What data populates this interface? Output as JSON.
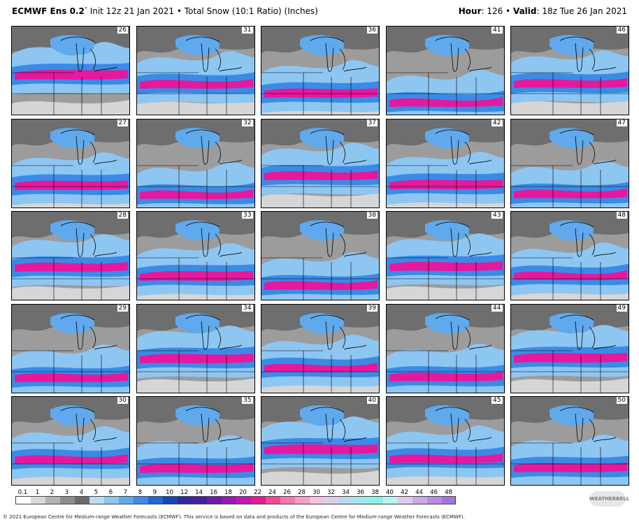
{
  "header": {
    "model": "ECMWF Ens 0.2",
    "model_sup": "°",
    "init": " Init 12z 21 Jan 2021",
    "bullet": " • ",
    "product": "Total Snow (10:1 Ratio) (Inches)",
    "hour_label": "Hour",
    "hour_value": ": 126 • ",
    "valid_label": "Valid",
    "valid_value": ": 18z Tue 26 Jan 2021"
  },
  "panels": [
    {
      "member": "26"
    },
    {
      "member": "31"
    },
    {
      "member": "36"
    },
    {
      "member": "41"
    },
    {
      "member": "46"
    },
    {
      "member": "27"
    },
    {
      "member": "32"
    },
    {
      "member": "37"
    },
    {
      "member": "42"
    },
    {
      "member": "47"
    },
    {
      "member": "28"
    },
    {
      "member": "33"
    },
    {
      "member": "38"
    },
    {
      "member": "43"
    },
    {
      "member": "48"
    },
    {
      "member": "29"
    },
    {
      "member": "34"
    },
    {
      "member": "39"
    },
    {
      "member": "44"
    },
    {
      "member": "49"
    },
    {
      "member": "30"
    },
    {
      "member": "35"
    },
    {
      "member": "40"
    },
    {
      "member": "45"
    },
    {
      "member": "50"
    }
  ],
  "colorbar": {
    "labels": [
      "0.1",
      "1",
      "2",
      "3",
      "4",
      "5",
      "6",
      "7",
      "8",
      "9",
      "10",
      "12",
      "14",
      "16",
      "18",
      "20",
      "22",
      "24",
      "26",
      "28",
      "30",
      "32",
      "34",
      "36",
      "38",
      "40",
      "42",
      "44",
      "46",
      "48"
    ],
    "colors": [
      "#ffffff",
      "#d9d9d9",
      "#b3b3b3",
      "#8c8c8c",
      "#6b6b6b",
      "#b9dcf7",
      "#8ec6f2",
      "#5fa9ec",
      "#3a8be6",
      "#1f66d6",
      "#1446b4",
      "#2e2a9c",
      "#4a1f9e",
      "#6e1aa8",
      "#9a17b6",
      "#c414b8",
      "#e6189e",
      "#f4469a",
      "#f676b2",
      "#f89cc8",
      "#f7c0dc",
      "#d8d0ec",
      "#b8d8f0",
      "#9ee6f0",
      "#8cf0e6",
      "#b8f4f0",
      "#e0c8f0",
      "#cca8ec",
      "#b88ce6",
      "#a474e0"
    ]
  },
  "logo": {
    "text": "WEATHERBELL"
  },
  "footer": {
    "text": "© 2021 European Centre for Medium-range Weather Forecasts (ECMWF). This service is based on data and products of the European Centre for Medium-range Weather Forecasts (ECMWF)."
  }
}
